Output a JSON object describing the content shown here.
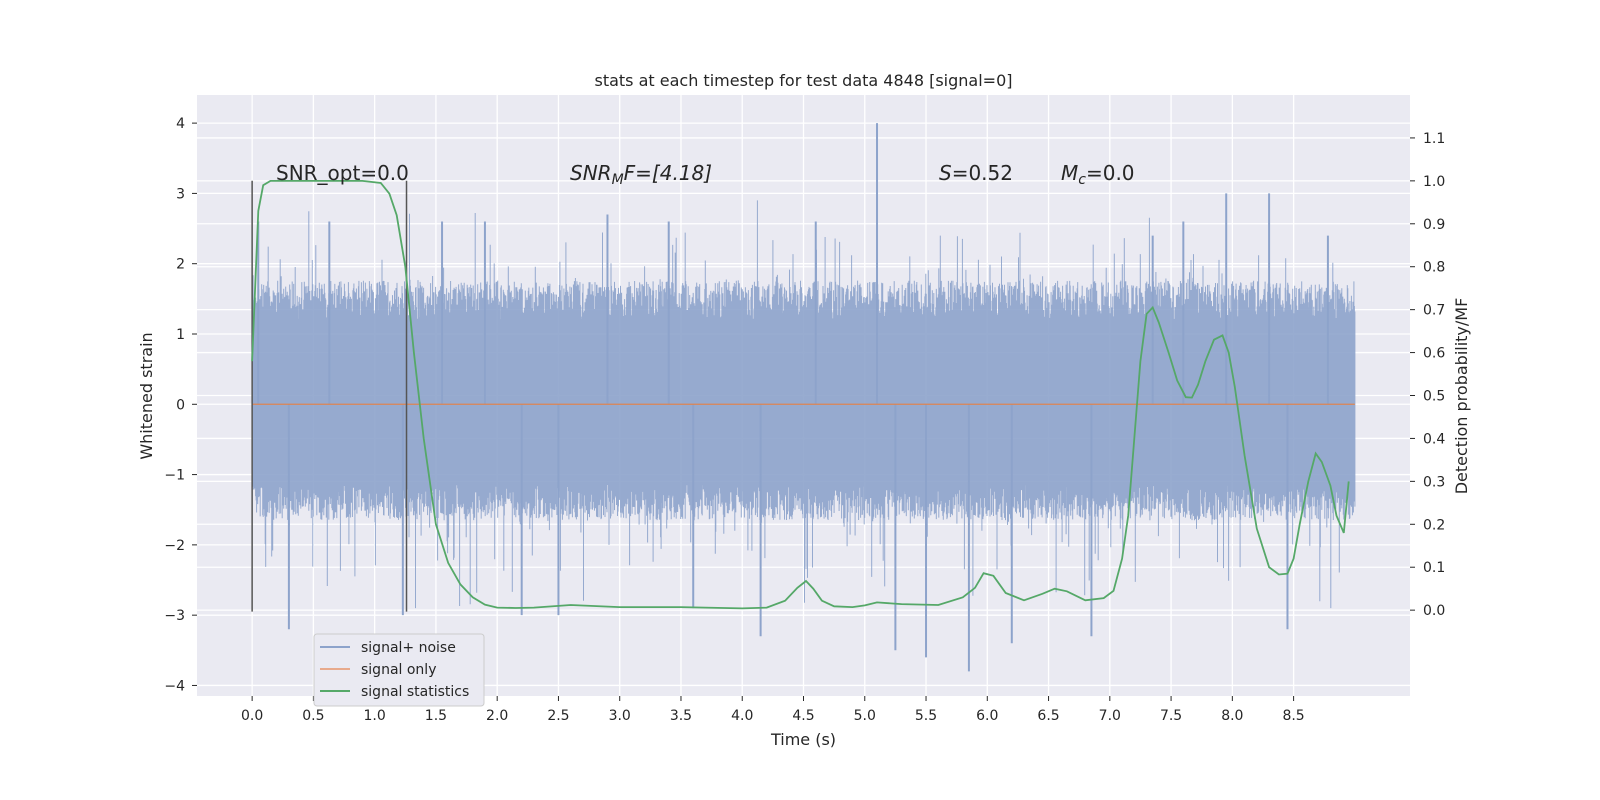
{
  "chart_data": {
    "type": "line",
    "title": "stats at each timestep for test data 4848 [signal=0]",
    "xlabel": "Time (s)",
    "ylabel_left": "Whitened strain",
    "ylabel_right": "Detection probability/MF",
    "xlim": [
      -0.45,
      9.45
    ],
    "ylim_left": [
      -4.15,
      4.4
    ],
    "ylim_right": [
      -0.2,
      1.2
    ],
    "x_ticks": [
      "0.0",
      "0.5",
      "1.0",
      "1.5",
      "2.0",
      "2.5",
      "3.0",
      "3.5",
      "4.0",
      "4.5",
      "5.0",
      "5.5",
      "6.0",
      "6.5",
      "7.0",
      "7.5",
      "8.0",
      "8.5"
    ],
    "y_ticks_left": [
      "4",
      "3",
      "2",
      "1",
      "0",
      "−1",
      "−2",
      "−3",
      "−4"
    ],
    "y_ticks_right": [
      "1.1",
      "1.0",
      "0.9",
      "0.8",
      "0.7",
      "0.6",
      "0.5",
      "0.4",
      "0.3",
      "0.2",
      "0.1",
      "0.0"
    ],
    "grid": true,
    "legend_position": "lower-left",
    "legend": [
      "signal+ noise",
      "signal only",
      "signal statistics"
    ],
    "annotations": {
      "snr_opt": "SNR_opt=0.0",
      "snr_mf_main": "SNR",
      "snr_mf_sub": "M",
      "snr_mf_rest": "F=[4.18]",
      "s_label": "S",
      "s_value": "=0.52",
      "mc_label": "M",
      "mc_sub": "c",
      "mc_value": "=0.0"
    },
    "vertical_markers": {
      "x": [
        0.0,
        1.26
      ],
      "y_range": [
        -2.95,
        3.18
      ]
    },
    "series": [
      {
        "name": "signal+ noise",
        "color": "#4c72b0",
        "x_range": [
          0.0,
          9.0
        ],
        "typical_band": [
          -1.5,
          1.6
        ],
        "spike_peaks": [
          {
            "x": 0.05,
            "y": 2.6
          },
          {
            "x": 0.3,
            "y": -3.2
          },
          {
            "x": 0.63,
            "y": 2.6
          },
          {
            "x": 1.23,
            "y": -3.0
          },
          {
            "x": 1.55,
            "y": 2.6
          },
          {
            "x": 1.9,
            "y": 2.6
          },
          {
            "x": 2.2,
            "y": -3.0
          },
          {
            "x": 2.5,
            "y": -3.0
          },
          {
            "x": 2.9,
            "y": 2.7
          },
          {
            "x": 3.4,
            "y": 2.6
          },
          {
            "x": 3.6,
            "y": -2.9
          },
          {
            "x": 4.15,
            "y": -3.3
          },
          {
            "x": 4.6,
            "y": 2.6
          },
          {
            "x": 5.1,
            "y": 4.0
          },
          {
            "x": 5.25,
            "y": -3.5
          },
          {
            "x": 5.5,
            "y": -3.6
          },
          {
            "x": 5.85,
            "y": -3.8
          },
          {
            "x": 6.2,
            "y": -3.4
          },
          {
            "x": 6.85,
            "y": -3.3
          },
          {
            "x": 7.35,
            "y": 2.4
          },
          {
            "x": 7.6,
            "y": 2.6
          },
          {
            "x": 7.95,
            "y": 3.0
          },
          {
            "x": 8.3,
            "y": 3.0
          },
          {
            "x": 8.45,
            "y": -3.2
          },
          {
            "x": 8.78,
            "y": 2.4
          }
        ]
      },
      {
        "name": "signal only",
        "color": "#dd8452",
        "x": [
          0.0,
          9.0
        ],
        "y": [
          0.0,
          0.0
        ]
      },
      {
        "name": "signal statistics",
        "color": "#55a868",
        "axis": "right",
        "x": [
          0.0,
          0.05,
          0.09,
          0.15,
          0.22,
          0.35,
          0.5,
          0.7,
          0.9,
          1.05,
          1.12,
          1.18,
          1.25,
          1.32,
          1.4,
          1.5,
          1.6,
          1.7,
          1.8,
          1.9,
          2.0,
          2.15,
          2.3,
          2.6,
          3.0,
          3.5,
          4.0,
          4.2,
          4.35,
          4.45,
          4.52,
          4.58,
          4.65,
          4.75,
          4.9,
          5.0,
          5.1,
          5.3,
          5.6,
          5.8,
          5.9,
          5.97,
          6.05,
          6.15,
          6.3,
          6.45,
          6.55,
          6.65,
          6.8,
          6.95,
          7.03,
          7.1,
          7.15,
          7.2,
          7.25,
          7.3,
          7.35,
          7.4,
          7.48,
          7.55,
          7.62,
          7.67,
          7.72,
          7.78,
          7.85,
          7.92,
          7.97,
          8.02,
          8.1,
          8.2,
          8.3,
          8.38,
          8.45,
          8.5,
          8.55,
          8.62,
          8.68,
          8.73,
          8.8,
          8.85,
          8.91,
          8.95
        ],
        "y": [
          0.58,
          0.93,
          0.99,
          1.0,
          1.0,
          1.0,
          1.0,
          1.0,
          1.0,
          0.995,
          0.97,
          0.92,
          0.8,
          0.6,
          0.4,
          0.2,
          0.11,
          0.06,
          0.03,
          0.013,
          0.006,
          0.005,
          0.006,
          0.012,
          0.007,
          0.007,
          0.004,
          0.006,
          0.022,
          0.052,
          0.068,
          0.05,
          0.022,
          0.009,
          0.007,
          0.011,
          0.018,
          0.014,
          0.012,
          0.03,
          0.052,
          0.086,
          0.08,
          0.04,
          0.023,
          0.038,
          0.05,
          0.044,
          0.023,
          0.028,
          0.045,
          0.12,
          0.22,
          0.4,
          0.58,
          0.69,
          0.705,
          0.67,
          0.6,
          0.535,
          0.496,
          0.495,
          0.525,
          0.58,
          0.63,
          0.64,
          0.6,
          0.52,
          0.36,
          0.19,
          0.1,
          0.083,
          0.085,
          0.12,
          0.2,
          0.3,
          0.365,
          0.345,
          0.29,
          0.22,
          0.18,
          0.3
        ]
      }
    ]
  }
}
